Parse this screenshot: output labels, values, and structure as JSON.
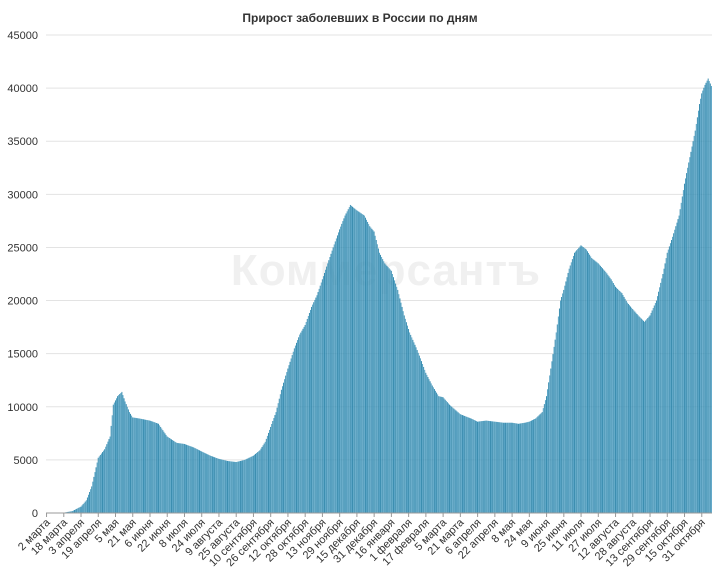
{
  "chart_data": {
    "type": "bar",
    "title": "Прирост заболевших в России по дням",
    "xlabel": "",
    "ylabel": "",
    "ylim": [
      0,
      45000
    ],
    "yticks": [
      0,
      5000,
      10000,
      15000,
      20000,
      25000,
      30000,
      35000,
      40000,
      45000
    ],
    "grid": true,
    "legend": "none",
    "bar_color": "#2e86ab",
    "watermark": "Коммерсантъ",
    "x_start": "2020-03-02",
    "x_end": "2021-11-09",
    "x_ticks": [
      {
        "date": "2020-03-02",
        "label": "2 марта"
      },
      {
        "date": "2020-03-18",
        "label": "18 марта"
      },
      {
        "date": "2020-04-03",
        "label": "3 апреля"
      },
      {
        "date": "2020-04-19",
        "label": "19 апреля"
      },
      {
        "date": "2020-05-05",
        "label": "5 мая"
      },
      {
        "date": "2020-05-21",
        "label": "21 мая"
      },
      {
        "date": "2020-06-06",
        "label": "6 июня"
      },
      {
        "date": "2020-06-22",
        "label": "22 июня"
      },
      {
        "date": "2020-07-08",
        "label": "8 июля"
      },
      {
        "date": "2020-07-24",
        "label": "24 июля"
      },
      {
        "date": "2020-08-09",
        "label": "9 августа"
      },
      {
        "date": "2020-08-25",
        "label": "25 августа"
      },
      {
        "date": "2020-09-10",
        "label": "10 сентября"
      },
      {
        "date": "2020-09-26",
        "label": "26 сентября"
      },
      {
        "date": "2020-10-12",
        "label": "12 октября"
      },
      {
        "date": "2020-10-28",
        "label": "28 октября"
      },
      {
        "date": "2020-11-13",
        "label": "13 ноября"
      },
      {
        "date": "2020-11-29",
        "label": "29 ноября"
      },
      {
        "date": "2020-12-15",
        "label": "15 декабря"
      },
      {
        "date": "2020-12-31",
        "label": "31 декабря"
      },
      {
        "date": "2021-01-16",
        "label": "16 января"
      },
      {
        "date": "2021-02-01",
        "label": "1 февраля"
      },
      {
        "date": "2021-02-17",
        "label": "17 февраля"
      },
      {
        "date": "2021-03-05",
        "label": "5 марта"
      },
      {
        "date": "2021-03-21",
        "label": "21 марта"
      },
      {
        "date": "2021-04-06",
        "label": "6 апреля"
      },
      {
        "date": "2021-04-22",
        "label": "22 апреля"
      },
      {
        "date": "2021-05-08",
        "label": "8 мая"
      },
      {
        "date": "2021-05-24",
        "label": "24 мая"
      },
      {
        "date": "2021-06-09",
        "label": "9 июня"
      },
      {
        "date": "2021-06-25",
        "label": "25 июня"
      },
      {
        "date": "2021-07-11",
        "label": "11 июля"
      },
      {
        "date": "2021-07-27",
        "label": "27 июля"
      },
      {
        "date": "2021-08-12",
        "label": "12 августа"
      },
      {
        "date": "2021-08-28",
        "label": "28 августа"
      },
      {
        "date": "2021-09-13",
        "label": "13 сентября"
      },
      {
        "date": "2021-09-29",
        "label": "29 сентября"
      },
      {
        "date": "2021-10-15",
        "label": "15 октября"
      },
      {
        "date": "2021-10-31",
        "label": "31 октября"
      }
    ],
    "values_by_date": [
      [
        "2020-03-02",
        0
      ],
      [
        "2020-03-18",
        30
      ],
      [
        "2020-03-26",
        180
      ],
      [
        "2020-04-03",
        600
      ],
      [
        "2020-04-08",
        1200
      ],
      [
        "2020-04-13",
        2500
      ],
      [
        "2020-04-19",
        5200
      ],
      [
        "2020-04-25",
        6000
      ],
      [
        "2020-04-30",
        7200
      ],
      [
        "2020-05-03",
        10200
      ],
      [
        "2020-05-07",
        11000
      ],
      [
        "2020-05-11",
        11400
      ],
      [
        "2020-05-14",
        10500
      ],
      [
        "2020-05-18",
        9500
      ],
      [
        "2020-05-21",
        9000
      ],
      [
        "2020-05-27",
        8900
      ],
      [
        "2020-06-06",
        8700
      ],
      [
        "2020-06-14",
        8400
      ],
      [
        "2020-06-22",
        7200
      ],
      [
        "2020-07-01",
        6600
      ],
      [
        "2020-07-08",
        6500
      ],
      [
        "2020-07-16",
        6200
      ],
      [
        "2020-07-24",
        5800
      ],
      [
        "2020-08-01",
        5400
      ],
      [
        "2020-08-09",
        5100
      ],
      [
        "2020-08-17",
        4900
      ],
      [
        "2020-08-25",
        4800
      ],
      [
        "2020-09-02",
        5000
      ],
      [
        "2020-09-10",
        5400
      ],
      [
        "2020-09-16",
        5900
      ],
      [
        "2020-09-21",
        6700
      ],
      [
        "2020-09-26",
        8100
      ],
      [
        "2020-10-01",
        9500
      ],
      [
        "2020-10-06",
        11600
      ],
      [
        "2020-10-12",
        13600
      ],
      [
        "2020-10-18",
        15500
      ],
      [
        "2020-10-23",
        16800
      ],
      [
        "2020-10-28",
        17700
      ],
      [
        "2020-11-03",
        19400
      ],
      [
        "2020-11-08",
        20500
      ],
      [
        "2020-11-13",
        22000
      ],
      [
        "2020-11-18",
        23500
      ],
      [
        "2020-11-23",
        25000
      ],
      [
        "2020-11-29",
        26700
      ],
      [
        "2020-12-04",
        28000
      ],
      [
        "2020-12-09",
        29000
      ],
      [
        "2020-12-15",
        28500
      ],
      [
        "2020-12-22",
        28000
      ],
      [
        "2020-12-27",
        27000
      ],
      [
        "2020-12-31",
        26500
      ],
      [
        "2021-01-05",
        24500
      ],
      [
        "2021-01-10",
        23500
      ],
      [
        "2021-01-16",
        22800
      ],
      [
        "2021-01-22",
        21000
      ],
      [
        "2021-01-28",
        18600
      ],
      [
        "2021-02-02",
        17000
      ],
      [
        "2021-02-08",
        15600
      ],
      [
        "2021-02-13",
        14300
      ],
      [
        "2021-02-17",
        13200
      ],
      [
        "2021-02-23",
        12000
      ],
      [
        "2021-03-01",
        11000
      ],
      [
        "2021-03-05",
        10900
      ],
      [
        "2021-03-11",
        10200
      ],
      [
        "2021-03-21",
        9300
      ],
      [
        "2021-03-31",
        8900
      ],
      [
        "2021-04-06",
        8600
      ],
      [
        "2021-04-14",
        8700
      ],
      [
        "2021-04-22",
        8600
      ],
      [
        "2021-04-30",
        8500
      ],
      [
        "2021-05-08",
        8500
      ],
      [
        "2021-05-14",
        8400
      ],
      [
        "2021-05-20",
        8500
      ],
      [
        "2021-05-24",
        8600
      ],
      [
        "2021-05-30",
        8900
      ],
      [
        "2021-06-05",
        9500
      ],
      [
        "2021-06-09",
        11000
      ],
      [
        "2021-06-13",
        13600
      ],
      [
        "2021-06-18",
        17000
      ],
      [
        "2021-06-22",
        20000
      ],
      [
        "2021-06-25",
        21000
      ],
      [
        "2021-06-30",
        23000
      ],
      [
        "2021-07-05",
        24500
      ],
      [
        "2021-07-11",
        25200
      ],
      [
        "2021-07-16",
        24800
      ],
      [
        "2021-07-21",
        24000
      ],
      [
        "2021-07-27",
        23500
      ],
      [
        "2021-08-03",
        22700
      ],
      [
        "2021-08-08",
        22000
      ],
      [
        "2021-08-12",
        21300
      ],
      [
        "2021-08-18",
        20700
      ],
      [
        "2021-08-23",
        19800
      ],
      [
        "2021-08-28",
        19200
      ],
      [
        "2021-09-03",
        18500
      ],
      [
        "2021-09-08",
        18000
      ],
      [
        "2021-09-13",
        18600
      ],
      [
        "2021-09-19",
        20000
      ],
      [
        "2021-09-25",
        22500
      ],
      [
        "2021-09-29",
        24500
      ],
      [
        "2021-10-04",
        26000
      ],
      [
        "2021-10-10",
        28000
      ],
      [
        "2021-10-15",
        31000
      ],
      [
        "2021-10-20",
        33500
      ],
      [
        "2021-10-25",
        36000
      ],
      [
        "2021-10-29",
        38500
      ],
      [
        "2021-10-31",
        39500
      ],
      [
        "2021-11-03",
        40300
      ],
      [
        "2021-11-06",
        40900
      ],
      [
        "2021-11-09",
        40200
      ]
    ]
  }
}
